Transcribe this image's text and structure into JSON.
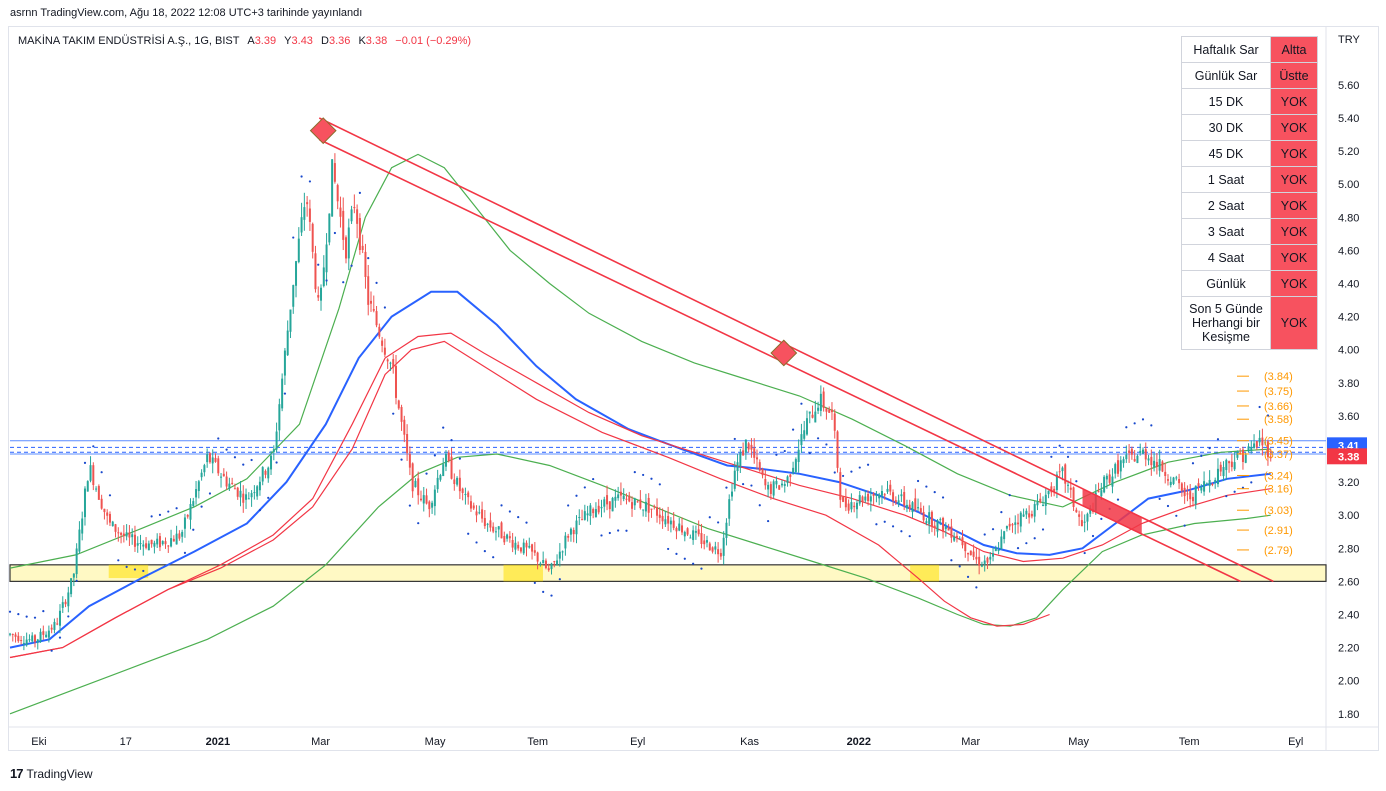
{
  "header": {
    "published_line": "asrnn TradingView.com, Ağu 18, 2022 12:08 UTC+3 tarihinde yayınlandı"
  },
  "legend": {
    "symbol": "MAKİNA TAKIM ENDÜSTRİSİ A.Ş., 1G, BIST",
    "open_label": "A",
    "open": "3.39",
    "high_label": "Y",
    "high": "3.43",
    "low_label": "D",
    "low": "3.36",
    "close_label": "K",
    "close": "3.38",
    "change": "−0.01 (−0.29%)"
  },
  "currency": "TRY",
  "footer": {
    "logo_mark": "17",
    "logo_text": "TradingView"
  },
  "signal_table": [
    {
      "label": "Haftalık Sar",
      "value": "Altta"
    },
    {
      "label": "Günlük Sar",
      "value": "Üstte"
    },
    {
      "label": "15 DK",
      "value": "YOK"
    },
    {
      "label": "30 DK",
      "value": "YOK"
    },
    {
      "label": "45 DK",
      "value": "YOK"
    },
    {
      "label": "1 Saat",
      "value": "YOK"
    },
    {
      "label": "2 Saat",
      "value": "YOK"
    },
    {
      "label": "3 Saat",
      "value": "YOK"
    },
    {
      "label": "4 Saat",
      "value": "YOK"
    },
    {
      "label": "Günlük",
      "value": "YOK"
    },
    {
      "label": "Son 5 Günde Herhangi bir Kesişme",
      "value": "YOK"
    }
  ],
  "colors": {
    "up": "#26a69a",
    "down": "#ef5350",
    "ema_blue": "#2962ff",
    "ma_red": "#f23645",
    "ma_green": "#4caf50",
    "sar": "#1848cc",
    "trend": "#f23645",
    "zone_fill": "#fff59d",
    "level_orange": "#ff9800",
    "price_tag_blue": "#2962ff",
    "price_tag_red": "#f23645"
  },
  "chart_data": {
    "type": "candlestick",
    "y_axis": {
      "ticks": [
        1.8,
        2.0,
        2.2,
        2.4,
        2.6,
        2.8,
        3.0,
        3.2,
        3.4,
        3.6,
        3.8,
        4.0,
        4.2,
        4.4,
        4.6,
        4.8,
        5.0,
        5.2,
        5.4,
        5.6
      ],
      "tick_labels": [
        "1.80",
        "2.00",
        "2.20",
        "2.40",
        "2.60",
        "2.80",
        "3.00",
        "3.20",
        "3.40",
        "3.60",
        "3.80",
        "4.00",
        "4.20",
        "4.40",
        "4.60",
        "4.80",
        "5.00",
        "5.20",
        "5.40",
        "5.60"
      ],
      "range": [
        1.72,
        5.95
      ]
    },
    "x_axis": {
      "labels": [
        "Eki",
        "17",
        "2021",
        "Mar",
        "May",
        "Tem",
        "Eyl",
        "Kas",
        "2022",
        "Mar",
        "May",
        "Tem",
        "Eyl"
      ],
      "bold_labels": [
        "2021",
        "2022"
      ],
      "label_positions_t": [
        0.022,
        0.088,
        0.158,
        0.236,
        0.323,
        0.401,
        0.477,
        0.562,
        0.645,
        0.73,
        0.812,
        0.896,
        0.977
      ],
      "range_t": [
        0,
        1
      ]
    },
    "price_series_anchors": [
      [
        0.0,
        2.28
      ],
      [
        0.018,
        2.24
      ],
      [
        0.035,
        2.34
      ],
      [
        0.048,
        2.62
      ],
      [
        0.06,
        3.3
      ],
      [
        0.075,
        2.95
      ],
      [
        0.09,
        2.85
      ],
      [
        0.11,
        2.82
      ],
      [
        0.13,
        2.88
      ],
      [
        0.15,
        3.35
      ],
      [
        0.165,
        3.2
      ],
      [
        0.18,
        3.1
      ],
      [
        0.2,
        3.35
      ],
      [
        0.215,
        4.4
      ],
      [
        0.225,
        4.95
      ],
      [
        0.235,
        4.2
      ],
      [
        0.245,
        5.1
      ],
      [
        0.255,
        4.6
      ],
      [
        0.262,
        4.9
      ],
      [
        0.272,
        4.3
      ],
      [
        0.29,
        3.9
      ],
      [
        0.305,
        3.2
      ],
      [
        0.318,
        3.05
      ],
      [
        0.33,
        3.35
      ],
      [
        0.345,
        3.1
      ],
      [
        0.362,
        2.95
      ],
      [
        0.38,
        2.85
      ],
      [
        0.4,
        2.75
      ],
      [
        0.41,
        2.65
      ],
      [
        0.425,
        2.9
      ],
      [
        0.445,
        3.05
      ],
      [
        0.465,
        3.1
      ],
      [
        0.485,
        3.05
      ],
      [
        0.505,
        2.95
      ],
      [
        0.525,
        2.85
      ],
      [
        0.54,
        2.78
      ],
      [
        0.55,
        3.25
      ],
      [
        0.56,
        3.45
      ],
      [
        0.575,
        3.15
      ],
      [
        0.59,
        3.2
      ],
      [
        0.605,
        3.55
      ],
      [
        0.615,
        3.7
      ],
      [
        0.625,
        3.6
      ],
      [
        0.632,
        3.05
      ],
      [
        0.645,
        3.1
      ],
      [
        0.665,
        3.15
      ],
      [
        0.685,
        3.05
      ],
      [
        0.705,
        2.95
      ],
      [
        0.72,
        2.88
      ],
      [
        0.735,
        2.72
      ],
      [
        0.745,
        2.72
      ],
      [
        0.76,
        2.95
      ],
      [
        0.78,
        3.05
      ],
      [
        0.8,
        3.25
      ],
      [
        0.815,
        2.92
      ],
      [
        0.83,
        3.18
      ],
      [
        0.845,
        3.32
      ],
      [
        0.862,
        3.38
      ],
      [
        0.88,
        3.25
      ],
      [
        0.895,
        3.1
      ],
      [
        0.91,
        3.2
      ],
      [
        0.925,
        3.32
      ],
      [
        0.94,
        3.38
      ],
      [
        0.95,
        3.45
      ],
      [
        0.958,
        3.38
      ]
    ],
    "series": [
      {
        "name": "",
        "kind": "line",
        "color_key": "ema_blue",
        "points": [
          [
            0.0,
            2.2
          ],
          [
            0.03,
            2.25
          ],
          [
            0.06,
            2.45
          ],
          [
            0.1,
            2.62
          ],
          [
            0.14,
            2.78
          ],
          [
            0.18,
            2.95
          ],
          [
            0.21,
            3.2
          ],
          [
            0.24,
            3.55
          ],
          [
            0.265,
            3.95
          ],
          [
            0.29,
            4.2
          ],
          [
            0.32,
            4.35
          ],
          [
            0.34,
            4.35
          ],
          [
            0.37,
            4.15
          ],
          [
            0.4,
            3.9
          ],
          [
            0.43,
            3.7
          ],
          [
            0.47,
            3.52
          ],
          [
            0.51,
            3.4
          ],
          [
            0.545,
            3.3
          ],
          [
            0.57,
            3.28
          ],
          [
            0.6,
            3.25
          ],
          [
            0.63,
            3.2
          ],
          [
            0.66,
            3.12
          ],
          [
            0.69,
            3.02
          ],
          [
            0.715,
            2.92
          ],
          [
            0.74,
            2.82
          ],
          [
            0.765,
            2.77
          ],
          [
            0.79,
            2.76
          ],
          [
            0.815,
            2.8
          ],
          [
            0.84,
            2.95
          ],
          [
            0.865,
            3.1
          ],
          [
            0.895,
            3.15
          ],
          [
            0.925,
            3.22
          ],
          [
            0.958,
            3.25
          ]
        ]
      },
      {
        "name": "",
        "kind": "line",
        "color_key": "ma_red",
        "points": [
          [
            0.0,
            2.14
          ],
          [
            0.04,
            2.2
          ],
          [
            0.08,
            2.38
          ],
          [
            0.12,
            2.55
          ],
          [
            0.16,
            2.7
          ],
          [
            0.2,
            2.88
          ],
          [
            0.23,
            3.1
          ],
          [
            0.26,
            3.55
          ],
          [
            0.285,
            3.95
          ],
          [
            0.31,
            4.08
          ],
          [
            0.335,
            4.1
          ],
          [
            0.36,
            3.98
          ],
          [
            0.4,
            3.8
          ],
          [
            0.44,
            3.62
          ],
          [
            0.48,
            3.48
          ],
          [
            0.52,
            3.38
          ],
          [
            0.56,
            3.28
          ],
          [
            0.6,
            3.18
          ],
          [
            0.64,
            3.1
          ],
          [
            0.68,
            3.0
          ],
          [
            0.71,
            2.9
          ],
          [
            0.74,
            2.78
          ],
          [
            0.77,
            2.72
          ],
          [
            0.8,
            2.74
          ],
          [
            0.83,
            2.82
          ],
          [
            0.86,
            2.95
          ],
          [
            0.895,
            3.05
          ],
          [
            0.925,
            3.12
          ],
          [
            0.958,
            3.16
          ]
        ]
      },
      {
        "name": "",
        "kind": "line",
        "color_key": "ma_green",
        "points": [
          [
            0.0,
            2.68
          ],
          [
            0.05,
            2.76
          ],
          [
            0.1,
            2.92
          ],
          [
            0.14,
            3.05
          ],
          [
            0.18,
            3.22
          ],
          [
            0.22,
            3.55
          ],
          [
            0.25,
            4.25
          ],
          [
            0.27,
            4.8
          ],
          [
            0.29,
            5.1
          ],
          [
            0.31,
            5.18
          ],
          [
            0.33,
            5.1
          ],
          [
            0.355,
            4.85
          ],
          [
            0.38,
            4.6
          ],
          [
            0.41,
            4.4
          ],
          [
            0.44,
            4.22
          ],
          [
            0.48,
            4.05
          ],
          [
            0.52,
            3.92
          ],
          [
            0.56,
            3.82
          ],
          [
            0.6,
            3.72
          ],
          [
            0.64,
            3.58
          ],
          [
            0.68,
            3.42
          ],
          [
            0.72,
            3.25
          ],
          [
            0.76,
            3.12
          ],
          [
            0.8,
            3.05
          ],
          [
            0.84,
            3.2
          ],
          [
            0.88,
            3.32
          ],
          [
            0.92,
            3.38
          ],
          [
            0.958,
            3.4
          ]
        ]
      },
      {
        "name": "",
        "kind": "line",
        "color_key": "ma_green",
        "points": [
          [
            0.0,
            1.8
          ],
          [
            0.05,
            1.95
          ],
          [
            0.1,
            2.1
          ],
          [
            0.15,
            2.25
          ],
          [
            0.2,
            2.45
          ],
          [
            0.24,
            2.7
          ],
          [
            0.28,
            3.05
          ],
          [
            0.31,
            3.25
          ],
          [
            0.34,
            3.35
          ],
          [
            0.37,
            3.37
          ],
          [
            0.41,
            3.3
          ],
          [
            0.45,
            3.18
          ],
          [
            0.49,
            3.05
          ],
          [
            0.53,
            2.92
          ],
          [
            0.57,
            2.82
          ],
          [
            0.61,
            2.72
          ],
          [
            0.65,
            2.62
          ],
          [
            0.69,
            2.5
          ],
          [
            0.72,
            2.4
          ],
          [
            0.74,
            2.34
          ],
          [
            0.76,
            2.33
          ],
          [
            0.78,
            2.38
          ],
          [
            0.8,
            2.55
          ],
          [
            0.83,
            2.78
          ],
          [
            0.86,
            2.88
          ],
          [
            0.9,
            2.95
          ],
          [
            0.94,
            2.98
          ],
          [
            0.958,
            3.0
          ]
        ]
      },
      {
        "name": "",
        "kind": "line",
        "color_key": "ma_red",
        "points": [
          [
            0.0,
            2.14
          ],
          [
            0.04,
            2.2
          ],
          [
            0.08,
            2.38
          ],
          [
            0.12,
            2.55
          ],
          [
            0.16,
            2.68
          ],
          [
            0.2,
            2.85
          ],
          [
            0.23,
            3.05
          ],
          [
            0.26,
            3.4
          ],
          [
            0.285,
            3.85
          ],
          [
            0.305,
            4.0
          ],
          [
            0.33,
            4.05
          ],
          [
            0.36,
            3.9
          ],
          [
            0.4,
            3.7
          ],
          [
            0.45,
            3.5
          ],
          [
            0.5,
            3.35
          ],
          [
            0.54,
            3.22
          ],
          [
            0.58,
            3.1
          ],
          [
            0.62,
            3.0
          ],
          [
            0.66,
            2.82
          ],
          [
            0.69,
            2.62
          ],
          [
            0.71,
            2.48
          ],
          [
            0.73,
            2.38
          ],
          [
            0.75,
            2.33
          ],
          [
            0.77,
            2.34
          ],
          [
            0.79,
            2.4
          ]
        ]
      }
    ],
    "trend_channel": {
      "upper": [
        [
          0.235,
          5.4
        ],
        [
          0.96,
          2.6
        ]
      ],
      "lower": [
        [
          0.235,
          5.27
        ],
        [
          0.935,
          2.6
        ]
      ],
      "touch_markers": [
        [
          0.238,
          5.33
        ],
        [
          0.58,
          3.97
        ],
        [
          0.815,
          3.15
        ],
        [
          0.855,
          3.05
        ]
      ]
    },
    "horizontal_levels": {
      "support_zone": [
        2.6,
        2.7
      ],
      "resistance_lines": [
        3.41,
        3.38
      ],
      "blue_lines": [
        3.45,
        3.37
      ],
      "orange_levels": [
        3.84,
        3.75,
        3.66,
        3.58,
        3.45,
        3.37,
        3.24,
        3.16,
        3.03,
        2.91,
        2.79
      ],
      "orange_labels": [
        "(3.84)",
        "(3.75)",
        "(3.66)",
        "(3.58)",
        "(3.45)",
        "(3.37)",
        "(3.24)",
        "(3.16)",
        "(3.03)",
        "(2.91)",
        "(2.79)"
      ]
    },
    "price_tags": [
      {
        "value": 3.41,
        "label": "3.41",
        "color_key": "price_tag_blue"
      },
      {
        "value": 3.38,
        "label": "3.38",
        "color_key": "price_tag_red"
      }
    ],
    "highlight_boxes": [
      [
        0.075,
        0.105,
        2.62,
        2.7
      ],
      [
        0.375,
        0.405,
        2.6,
        2.7
      ],
      [
        0.684,
        0.706,
        2.6,
        2.7
      ]
    ]
  }
}
